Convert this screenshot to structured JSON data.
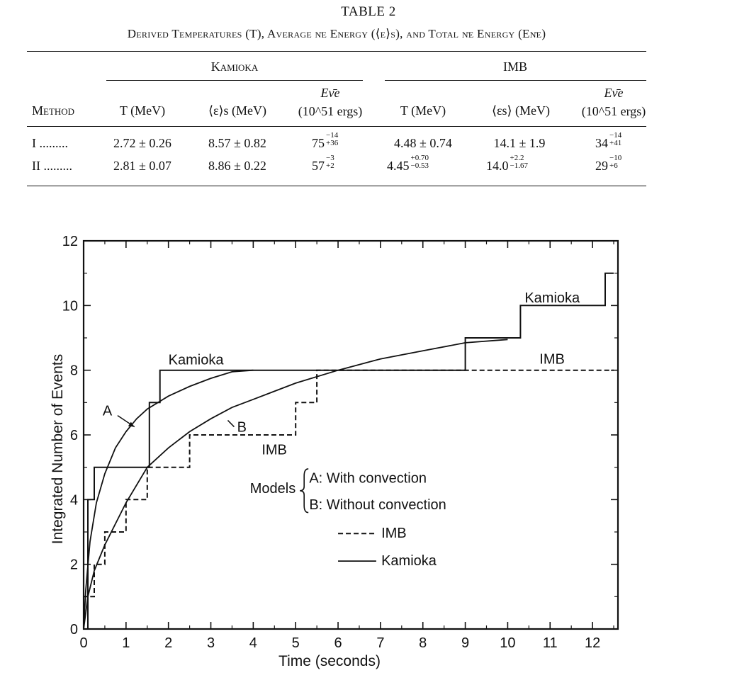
{
  "table": {
    "title": "TABLE 2",
    "caption": "Derived Temperatures (T), Average ν̄e Energy (⟨ε⟩s), and Total ν̄e Energy (Eν̄e)",
    "group_kamioka": "Kamioka",
    "group_imb": "IMB",
    "col_method": "Method",
    "col_T": "T (MeV)",
    "col_eps": "⟨ε⟩s (MeV)",
    "col_E_top": "Eν̄e",
    "col_E_bottom": "(10^51 ergs)",
    "col_T_imb": "T (MeV)",
    "col_eps_imb": "⟨εs⟩ (MeV)",
    "col_E_top_imb": "Eν̄e",
    "col_E_bottom_imb": "(10^51 ergs)",
    "rows": [
      {
        "method": "I .........",
        "k_T": "2.72 ± 0.26",
        "k_eps": "8.57 ± 0.82",
        "k_E": "75",
        "k_E_sup": "−14",
        "k_E_sub": "+36",
        "i_T": "4.48 ± 0.74",
        "i_T_sup": "",
        "i_T_sub": "",
        "i_eps": "14.1 ± 1.9",
        "i_eps_sup": "",
        "i_eps_sub": "",
        "i_E": "34",
        "i_E_sup": "−14",
        "i_E_sub": "+41"
      },
      {
        "method": "II .........",
        "k_T": "2.81 ± 0.07",
        "k_eps": "8.86 ± 0.22",
        "k_E": "57",
        "k_E_sup": "−3",
        "k_E_sub": "+2",
        "i_T": "4.45",
        "i_T_sup": "+0.70",
        "i_T_sub": "−0.53",
        "i_eps": "14.0",
        "i_eps_sup": "+2.2",
        "i_eps_sub": "−1.67",
        "i_E": "29",
        "i_E_sup": "−10",
        "i_E_sub": "+6"
      }
    ]
  },
  "chart_data": {
    "type": "line",
    "xlabel": "Time (seconds)",
    "ylabel": "Integrated Number of Events",
    "xlim": [
      0,
      12.6
    ],
    "ylim": [
      0,
      12
    ],
    "x_ticks": [
      0,
      1,
      2,
      3,
      4,
      5,
      6,
      7,
      8,
      9,
      10,
      11,
      12
    ],
    "y_ticks": [
      0,
      2,
      4,
      6,
      8,
      10,
      12
    ],
    "series": [
      {
        "name": "Kamioka",
        "style": "solid-step",
        "x": [
          0,
          0.1,
          0.1,
          0.25,
          0.25,
          0.5,
          0.5,
          1.55,
          1.55,
          1.8,
          1.8,
          9.0,
          9.0,
          10.3,
          10.3,
          12.3,
          12.3,
          12.5
        ],
        "y": [
          0,
          0,
          4,
          4,
          5,
          5,
          5,
          5,
          7,
          7,
          8,
          8,
          9,
          9,
          10,
          10,
          11,
          11
        ]
      },
      {
        "name": "IMB",
        "style": "dashed-step",
        "x": [
          0,
          0,
          0.25,
          0.25,
          0.5,
          0.5,
          1.0,
          1.0,
          1.5,
          1.5,
          2.5,
          2.5,
          5.0,
          5.0,
          5.5,
          5.5,
          12.5
        ],
        "y": [
          0,
          1,
          1,
          2,
          2,
          3,
          3,
          4,
          4,
          5,
          5,
          6,
          6,
          7,
          7,
          8,
          8
        ]
      },
      {
        "name": "A",
        "style": "solid-curve",
        "x": [
          0,
          0.05,
          0.15,
          0.3,
          0.5,
          0.75,
          1.0,
          1.25,
          1.5,
          2.0,
          2.5,
          3.0,
          3.5,
          4.0
        ],
        "y": [
          0,
          1.2,
          2.7,
          3.9,
          4.8,
          5.6,
          6.1,
          6.5,
          6.8,
          7.2,
          7.5,
          7.75,
          7.95,
          8.0
        ]
      },
      {
        "name": "B",
        "style": "solid-curve",
        "x": [
          0,
          0.1,
          0.25,
          0.5,
          1.0,
          1.5,
          2.0,
          2.5,
          3.0,
          3.5,
          4.0,
          5.0,
          6.0,
          7.0,
          8.0,
          9.0,
          10.0
        ],
        "y": [
          0,
          1.0,
          1.8,
          2.6,
          3.9,
          5.0,
          5.6,
          6.1,
          6.5,
          6.85,
          7.1,
          7.6,
          8.0,
          8.35,
          8.6,
          8.85,
          8.95
        ]
      }
    ],
    "annotations": {
      "kamioka_upper": "Kamioka",
      "kamioka_left": "Kamioka",
      "imb_right": "IMB",
      "imb_mid": "IMB",
      "label_a": "A",
      "label_b": "B"
    },
    "legend": {
      "models": "Models",
      "a_entry": "A: With convection",
      "b_entry": "B: Without convection",
      "imb": "IMB",
      "kamioka": "Kamioka"
    }
  }
}
